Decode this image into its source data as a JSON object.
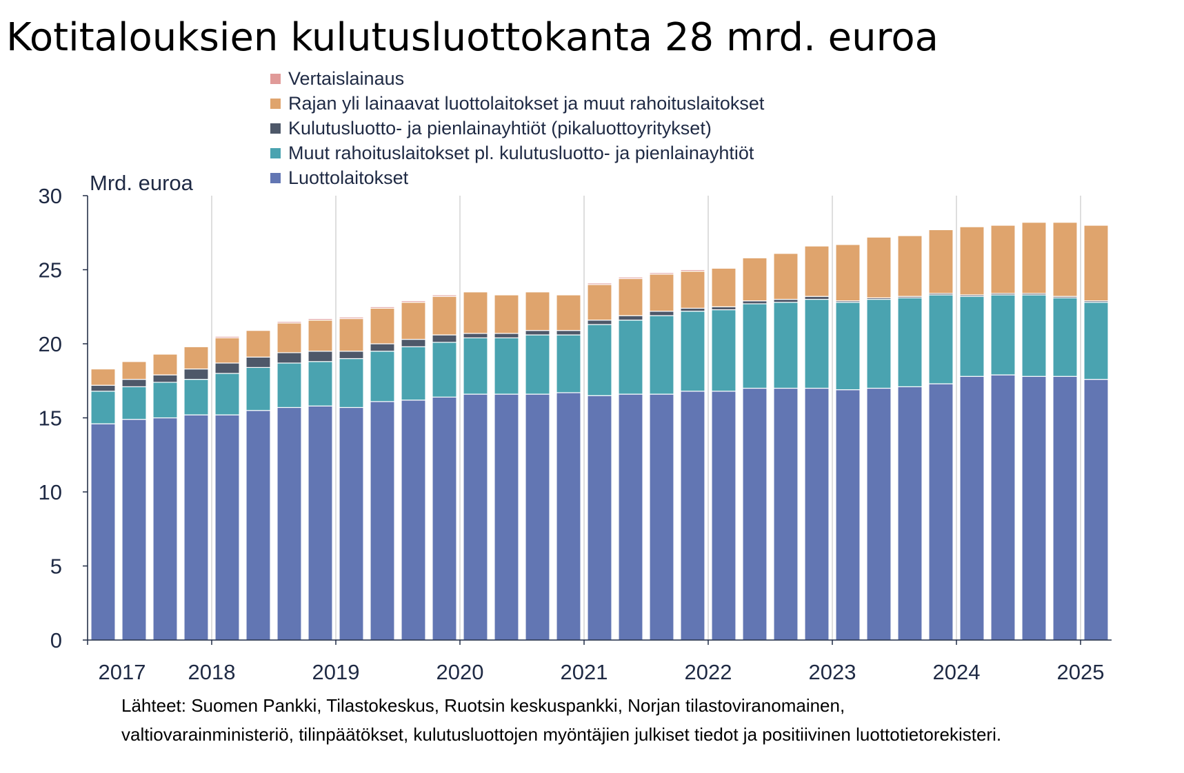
{
  "chart_data": {
    "type": "bar",
    "stacked": true,
    "title": "Kotitalouksien kulutusluottokanta 28 mrd. euroa",
    "ylabel": "Mrd. euroa",
    "xlabel": "",
    "ylim": [
      0,
      30
    ],
    "yticks": [
      0,
      5,
      10,
      15,
      20,
      25,
      30
    ],
    "x_tick_labels": [
      "2017",
      "2018",
      "2019",
      "2020",
      "2021",
      "2022",
      "2023",
      "2024",
      "2025"
    ],
    "grid": "vertical",
    "legend_position": "top",
    "periods": [
      "2017Q1",
      "2017Q2",
      "2017Q3",
      "2017Q4",
      "2018Q1",
      "2018Q2",
      "2018Q3",
      "2018Q4",
      "2019Q1",
      "2019Q2",
      "2019Q3",
      "2019Q4",
      "2020Q1",
      "2020Q2",
      "2020Q3",
      "2020Q4",
      "2021Q1",
      "2021Q2",
      "2021Q3",
      "2021Q4",
      "2022Q1",
      "2022Q2",
      "2022Q3",
      "2022Q4",
      "2023Q1",
      "2023Q2",
      "2023Q3",
      "2023Q4",
      "2024Q1",
      "2024Q2",
      "2024Q3",
      "2024Q4",
      "2025Q1"
    ],
    "series": [
      {
        "name": "Luottolaitokset",
        "color": "#6276b3",
        "values": [
          14.6,
          14.9,
          15.0,
          15.2,
          15.2,
          15.5,
          15.7,
          15.8,
          15.7,
          16.1,
          16.2,
          16.4,
          16.6,
          16.6,
          16.6,
          16.7,
          16.5,
          16.6,
          16.6,
          16.8,
          16.8,
          17.0,
          17.0,
          17.0,
          16.9,
          17.0,
          17.1,
          17.3,
          17.8,
          17.9,
          17.8,
          17.8,
          17.6
        ]
      },
      {
        "name": "Muut rahoituslaitokset pl. kulutusluotto- ja pienlainayhtiöt",
        "color": "#4aa3b0",
        "values": [
          2.2,
          2.2,
          2.4,
          2.4,
          2.8,
          2.9,
          3.0,
          3.0,
          3.3,
          3.4,
          3.6,
          3.7,
          3.8,
          3.8,
          4.0,
          3.9,
          4.8,
          5.0,
          5.3,
          5.4,
          5.5,
          5.7,
          5.8,
          6.0,
          5.9,
          6.0,
          6.0,
          6.0,
          5.4,
          5.4,
          5.5,
          5.3,
          5.2
        ]
      },
      {
        "name": "Kulutusluotto- ja pienlainayhtiöt (pikaluottoyritykset)",
        "color": "#4e5869",
        "values": [
          0.4,
          0.5,
          0.5,
          0.7,
          0.7,
          0.7,
          0.7,
          0.7,
          0.5,
          0.5,
          0.5,
          0.5,
          0.3,
          0.3,
          0.3,
          0.3,
          0.3,
          0.3,
          0.3,
          0.2,
          0.2,
          0.2,
          0.2,
          0.2,
          0.1,
          0.1,
          0.1,
          0.1,
          0.1,
          0.1,
          0.1,
          0.1,
          0.1
        ]
      },
      {
        "name": "Rajan yli lainaavat luottolaitokset ja muut rahoituslaitokset",
        "color": "#dfa46d",
        "values": [
          1.1,
          1.2,
          1.4,
          1.5,
          1.7,
          1.8,
          2.0,
          2.1,
          2.2,
          2.4,
          2.5,
          2.6,
          2.8,
          2.6,
          2.6,
          2.4,
          2.4,
          2.5,
          2.5,
          2.5,
          2.6,
          2.9,
          3.1,
          3.4,
          3.8,
          4.1,
          4.1,
          4.3,
          4.6,
          4.6,
          4.8,
          5.0,
          5.1
        ]
      },
      {
        "name": "Vertaislainaus",
        "color": "#e09a98",
        "values": [
          0,
          0,
          0,
          0,
          0.1,
          0,
          0.1,
          0.1,
          0.1,
          0.1,
          0.1,
          0.1,
          0,
          0,
          0,
          0,
          0.1,
          0.1,
          0.1,
          0.1,
          0,
          0,
          0,
          0,
          0,
          0,
          0,
          0,
          0,
          0,
          0,
          0,
          0
        ]
      }
    ],
    "source": "Lähteet: Suomen Pankki, Tilastokeskus, Ruotsin keskuspankki, Norjan tilastoviranomainen, valtiovarainministeriö, tilinpäätökset, kulutusluottojen myöntäjien julkiset tiedot ja positiivinen luottotietorekisteri.",
    "source_lines": [
      "Lähteet: Suomen Pankki, Tilastokeskus, Ruotsin keskuspankki, Norjan tilastoviranomainen,",
      "valtiovarainministeriö, tilinpäätökset, kulutusluottojen myöntäjien julkiset tiedot ja positiivinen luottotietorekisteri."
    ]
  }
}
